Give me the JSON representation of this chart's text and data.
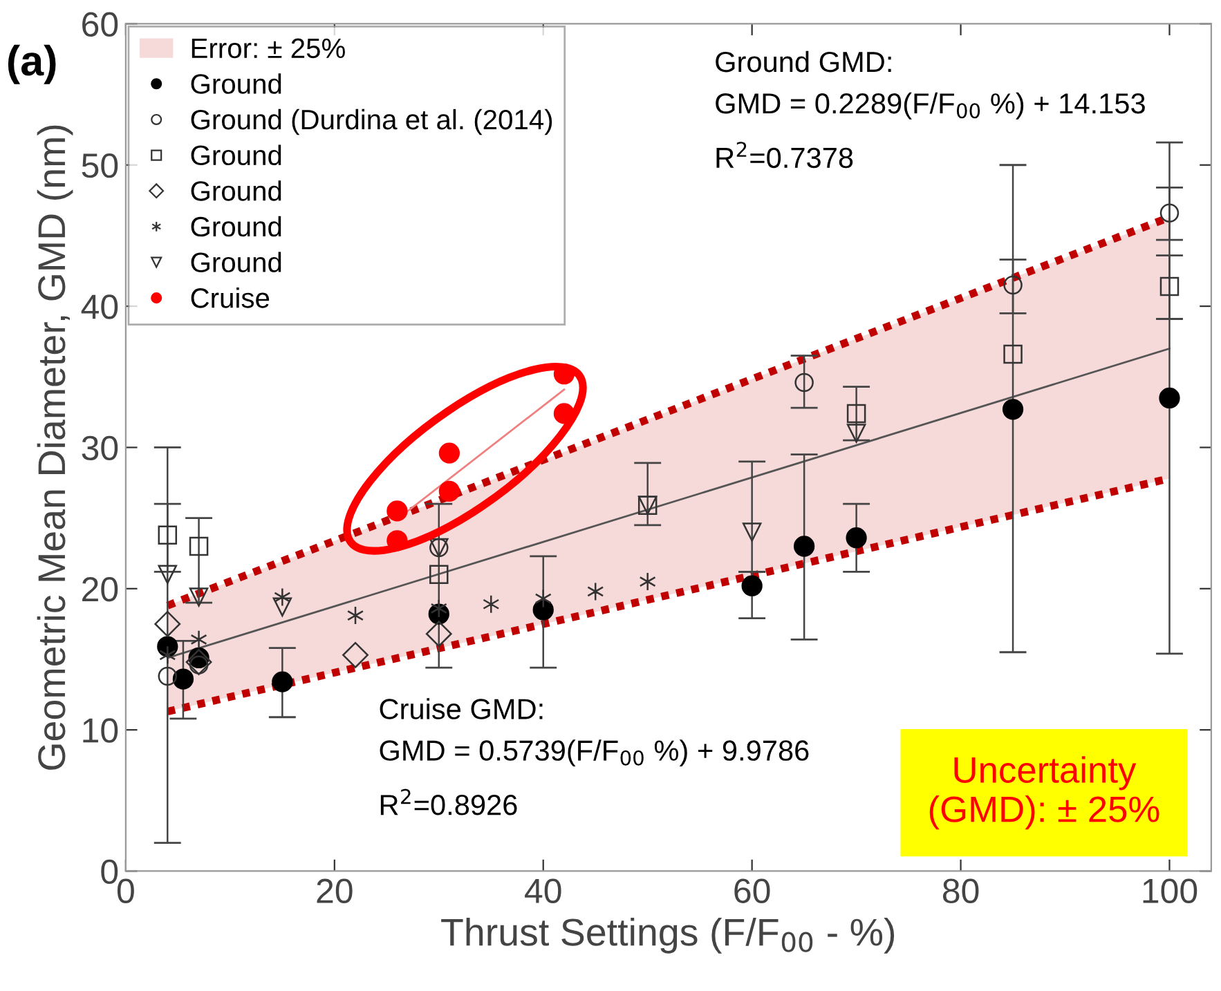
{
  "chart_data": {
    "type": "scatter",
    "xlabel": "Thrust Settings (F/F$_{00}$ - %)",
    "ylabel": "Geometric Mean Diameter, GMD (nm)",
    "xlim": [
      0,
      104
    ],
    "ylim": [
      0,
      60
    ],
    "xticks": [
      0,
      20,
      40,
      60,
      80,
      100
    ],
    "yticks": [
      0,
      10,
      20,
      30,
      40,
      50,
      60
    ],
    "grid": false,
    "legend": "top left",
    "series": [
      {
        "type": "area",
        "name": "Error: ± 25%",
        "color": "#c00000",
        "line_style": "dotted",
        "x": [
          4,
          100
        ],
        "values": [
          18.8,
          46.3
        ]
      },
      {
        "type": "line",
        "color": "#c00000",
        "line_style": "dotted",
        "x": [
          4,
          100
        ],
        "values": [
          11.3,
          27.8
        ]
      },
      {
        "type": "line",
        "color": "#555555",
        "line_style": "solid",
        "x": [
          4,
          100
        ],
        "values": [
          15.1,
          37.0
        ]
      },
      {
        "type": "line",
        "color": "#f08080",
        "line_style": "solid",
        "x": [
          26,
          42
        ],
        "values": [
          24.9,
          34.1
        ]
      },
      {
        "name": "Ground",
        "color": "#000000",
        "marker": "circle",
        "x": [
          4,
          5.5,
          7,
          15,
          30,
          40,
          60,
          65,
          70,
          85,
          100
        ],
        "values": [
          15.9,
          13.6,
          15.1,
          13.4,
          18.2,
          18.5,
          20.2,
          23.0,
          23.6,
          32.7,
          33.5
        ],
        "errors": [
          [
            2,
            30
          ],
          [
            10.8,
            16.3
          ],
          null,
          [
            10.9,
            15.8
          ],
          [
            14.4,
            26
          ],
          [
            14.4,
            22.3
          ],
          [
            17.9,
            21.2
          ],
          [
            16.4,
            29.5
          ],
          [
            21.2,
            26.0
          ],
          [
            15.5,
            50.0
          ],
          [
            15.4,
            51.6
          ]
        ]
      },
      {
        "name": "Ground (Durdina et al. (2014)",
        "color": "#333333",
        "marker": "circle",
        "x": [
          4,
          7,
          30,
          65,
          85,
          100
        ],
        "values": [
          13.8,
          14.6,
          22.9,
          34.6,
          41.5,
          46.6
        ],
        "errors": [
          null,
          null,
          null,
          [
            32.8,
            36.5
          ],
          [
            39.5,
            43.3
          ],
          [
            44.7,
            48.4
          ]
        ]
      },
      {
        "name": "Ground",
        "color": "#333333",
        "marker": "square",
        "x": [
          4,
          7,
          30,
          50,
          70,
          85,
          100
        ],
        "values": [
          23.8,
          23.0,
          21.0,
          25.9,
          32.4,
          36.6,
          41.4
        ],
        "errors": [
          [
            21.2,
            26.0
          ],
          [
            19.0,
            25.0
          ],
          null,
          null,
          [
            30.5,
            34.3
          ],
          null,
          [
            39.1,
            43.6
          ]
        ]
      },
      {
        "name": "Ground",
        "color": "#333333",
        "marker": "diamond",
        "x": [
          4,
          7,
          22,
          30
        ],
        "values": [
          17.5,
          14.8,
          15.3,
          16.8
        ]
      },
      {
        "name": "Ground",
        "color": "#333333",
        "marker": "cross",
        "x": [
          4,
          7,
          15,
          22,
          30,
          35,
          40,
          45,
          50
        ],
        "values": [
          15.3,
          16.4,
          19.4,
          18.1,
          18.6,
          18.9,
          19.3,
          19.8,
          20.5
        ]
      },
      {
        "name": "Ground",
        "color": "#333333",
        "marker": "triangle",
        "x": [
          4,
          7,
          15,
          30,
          50,
          60,
          70
        ],
        "values": [
          21.0,
          19.4,
          18.7,
          22.9,
          25.9,
          24.0,
          31.0
        ],
        "errors": [
          null,
          null,
          null,
          null,
          [
            24.5,
            28.9
          ],
          [
            21.2,
            29.0
          ],
          null
        ]
      },
      {
        "name": "Cruise",
        "color": "#ff0000",
        "marker": "circle",
        "x": [
          26,
          26,
          31,
          31,
          42,
          42
        ],
        "values": [
          25.5,
          23.4,
          29.6,
          26.9,
          35.2,
          32.4
        ]
      }
    ],
    "annotations": [
      "(a)",
      "Ground GMD:",
      "GMD = 0.2289(F/F$_{00}$ %) + 14.153",
      "R$^{2}$=0.7378",
      "Cruise GMD:",
      "GMD = 0.5739(F/F$_{00}$ %) + 9.9786",
      "R$^{2}$=0.8926",
      "Uncertainty\n(GMD): ± 25%"
    ]
  }
}
